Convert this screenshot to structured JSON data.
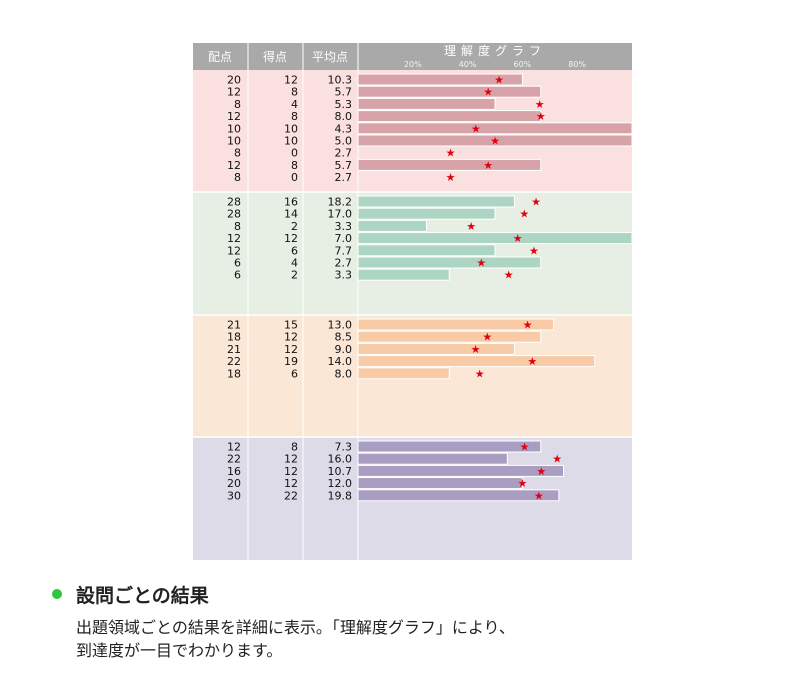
{
  "chart_data": {
    "type": "bar",
    "columns": {
      "max_score": "配点",
      "score": "得点",
      "average": "平均点",
      "graph": "理解度グラフ"
    },
    "xlim": [
      0,
      100
    ],
    "xticks": [
      "20%",
      "40%",
      "60%",
      "80%"
    ],
    "tick_values": [
      20,
      40,
      60,
      80
    ],
    "marker": "★",
    "marker_meaning": "average",
    "sections": [
      {
        "name": "",
        "rows": [
          {
            "max": "20",
            "score": "12",
            "avg": "10.3",
            "score_pct": 60,
            "avg_pct": 51.5
          },
          {
            "max": "12",
            "score": "8",
            "avg": "5.7",
            "score_pct": 66.7,
            "avg_pct": 47.5
          },
          {
            "max": "8",
            "score": "4",
            "avg": "5.3",
            "score_pct": 50,
            "avg_pct": 66.3
          },
          {
            "max": "12",
            "score": "8",
            "avg": "8.0",
            "score_pct": 66.7,
            "avg_pct": 66.7
          },
          {
            "max": "10",
            "score": "10",
            "avg": "4.3",
            "score_pct": 100,
            "avg_pct": 43
          },
          {
            "max": "10",
            "score": "10",
            "avg": "5.0",
            "score_pct": 100,
            "avg_pct": 50
          },
          {
            "max": "8",
            "score": "0",
            "avg": "2.7",
            "score_pct": 0,
            "avg_pct": 33.8
          },
          {
            "max": "12",
            "score": "8",
            "avg": "5.7",
            "score_pct": 66.7,
            "avg_pct": 47.5
          },
          {
            "max": "8",
            "score": "0",
            "avg": "2.7",
            "score_pct": 0,
            "avg_pct": 33.8
          }
        ]
      },
      {
        "name": "",
        "rows": [
          {
            "max": "28",
            "score": "16",
            "avg": "18.2",
            "score_pct": 57.1,
            "avg_pct": 65
          },
          {
            "max": "28",
            "score": "14",
            "avg": "17.0",
            "score_pct": 50,
            "avg_pct": 60.7
          },
          {
            "max": "8",
            "score": "2",
            "avg": "3.3",
            "score_pct": 25,
            "avg_pct": 41.3
          },
          {
            "max": "12",
            "score": "12",
            "avg": "7.0",
            "score_pct": 100,
            "avg_pct": 58.3
          },
          {
            "max": "12",
            "score": "6",
            "avg": "7.7",
            "score_pct": 50,
            "avg_pct": 64.2
          },
          {
            "max": "6",
            "score": "4",
            "avg": "2.7",
            "score_pct": 66.7,
            "avg_pct": 45
          },
          {
            "max": "6",
            "score": "2",
            "avg": "3.3",
            "score_pct": 33.3,
            "avg_pct": 55
          }
        ]
      },
      {
        "name": "",
        "rows": [
          {
            "max": "21",
            "score": "15",
            "avg": "13.0",
            "score_pct": 71.4,
            "avg_pct": 61.9
          },
          {
            "max": "18",
            "score": "12",
            "avg": "8.5",
            "score_pct": 66.7,
            "avg_pct": 47.2
          },
          {
            "max": "21",
            "score": "12",
            "avg": "9.0",
            "score_pct": 57.1,
            "avg_pct": 42.9
          },
          {
            "max": "22",
            "score": "19",
            "avg": "14.0",
            "score_pct": 86.4,
            "avg_pct": 63.6
          },
          {
            "max": "18",
            "score": "6",
            "avg": "8.0",
            "score_pct": 33.3,
            "avg_pct": 44.4
          }
        ]
      },
      {
        "name": "",
        "rows": [
          {
            "max": "12",
            "score": "8",
            "avg": "7.3",
            "score_pct": 66.7,
            "avg_pct": 60.8
          },
          {
            "max": "22",
            "score": "12",
            "avg": "16.0",
            "score_pct": 54.5,
            "avg_pct": 72.7
          },
          {
            "max": "16",
            "score": "12",
            "avg": "10.7",
            "score_pct": 75,
            "avg_pct": 66.9
          },
          {
            "max": "20",
            "score": "12",
            "avg": "12.0",
            "score_pct": 60,
            "avg_pct": 60
          },
          {
            "max": "30",
            "score": "22",
            "avg": "19.8",
            "score_pct": 73.3,
            "avg_pct": 66
          }
        ]
      }
    ]
  },
  "colors": {
    "header_bg": "#a9a9a9",
    "section_bg": [
      "#fae0de",
      "#e7efe5",
      "#fae7d6",
      "#dedbe8"
    ],
    "bar_fill": [
      "#d7a3a8",
      "#acd5c3",
      "#f8cba6",
      "#a99dc2"
    ],
    "star": "#e0000f",
    "bullet": "#2ec63a"
  },
  "feature": {
    "title": "設問ごとの結果",
    "desc_line1": "出題領域ごとの結果を詳細に表示。「理解度グラフ」により、",
    "desc_line2": "到達度が一目でわかります。"
  }
}
